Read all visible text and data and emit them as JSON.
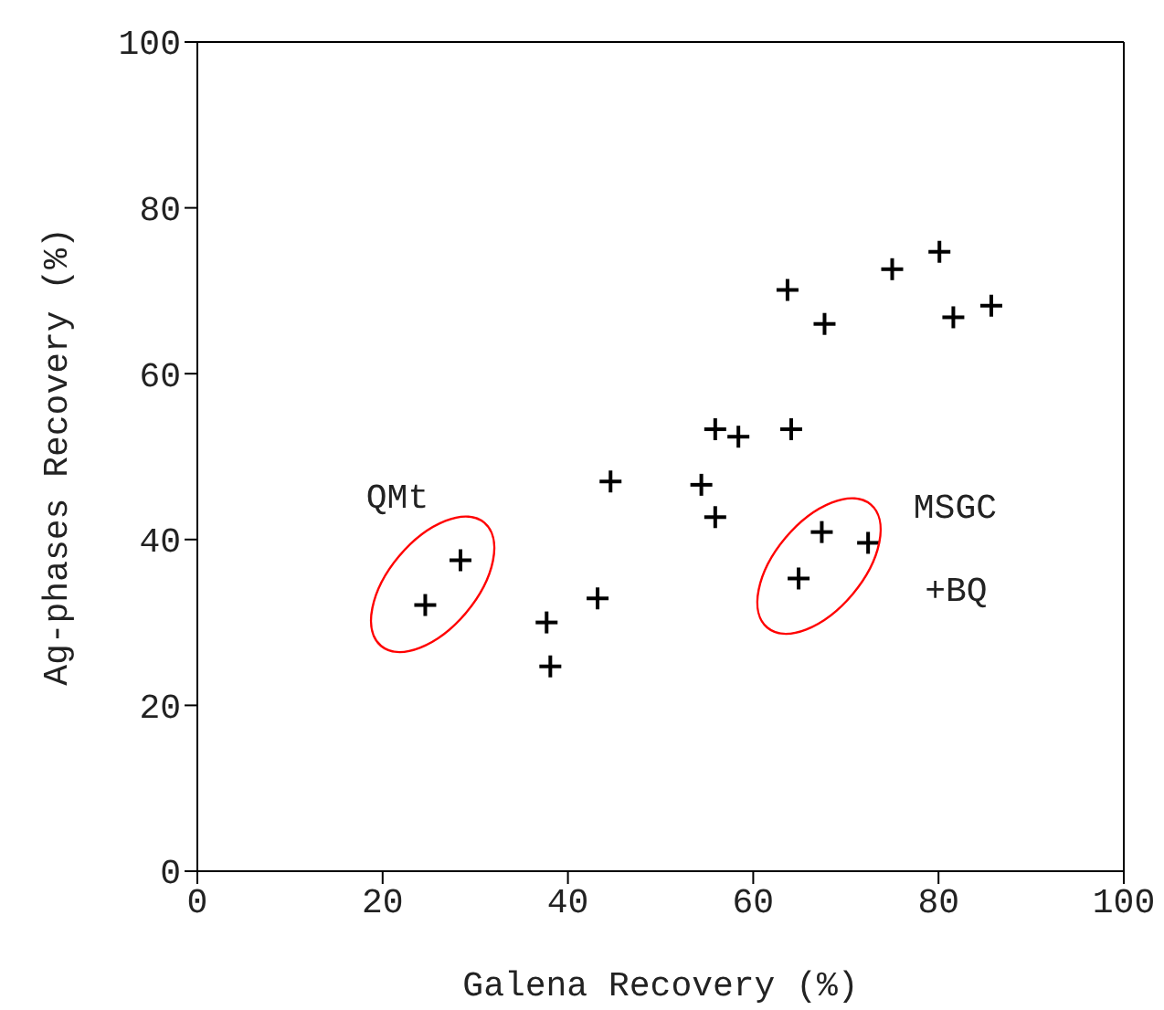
{
  "chart_data": {
    "type": "scatter",
    "xlabel": "Galena Recovery (%)",
    "ylabel": "Ag-phases Recovery (%)",
    "x": [
      24.6,
      28.4,
      37.7,
      38.1,
      43.2,
      44.6,
      54.4,
      55.9,
      55.9,
      58.4,
      64.1,
      63.7,
      67.7,
      64.9,
      67.4,
      72.4,
      75.0,
      80.1,
      81.6,
      85.7
    ],
    "values": [
      32.1,
      37.5,
      30.0,
      24.7,
      32.9,
      47.0,
      46.6,
      53.3,
      42.7,
      52.4,
      53.3,
      70.1,
      66.0,
      35.3,
      40.9,
      39.6,
      72.6,
      74.7,
      66.8,
      68.2
    ],
    "color": "#000000",
    "marker": "cross",
    "xlim": [
      0,
      100
    ],
    "xticks": [
      0,
      20,
      40,
      60,
      80,
      100
    ],
    "ylim": [
      0,
      100
    ],
    "yticks": [
      0,
      20,
      40,
      60,
      80,
      100
    ],
    "annotations": [
      "QMt",
      "MSGC",
      "+BQ"
    ]
  }
}
